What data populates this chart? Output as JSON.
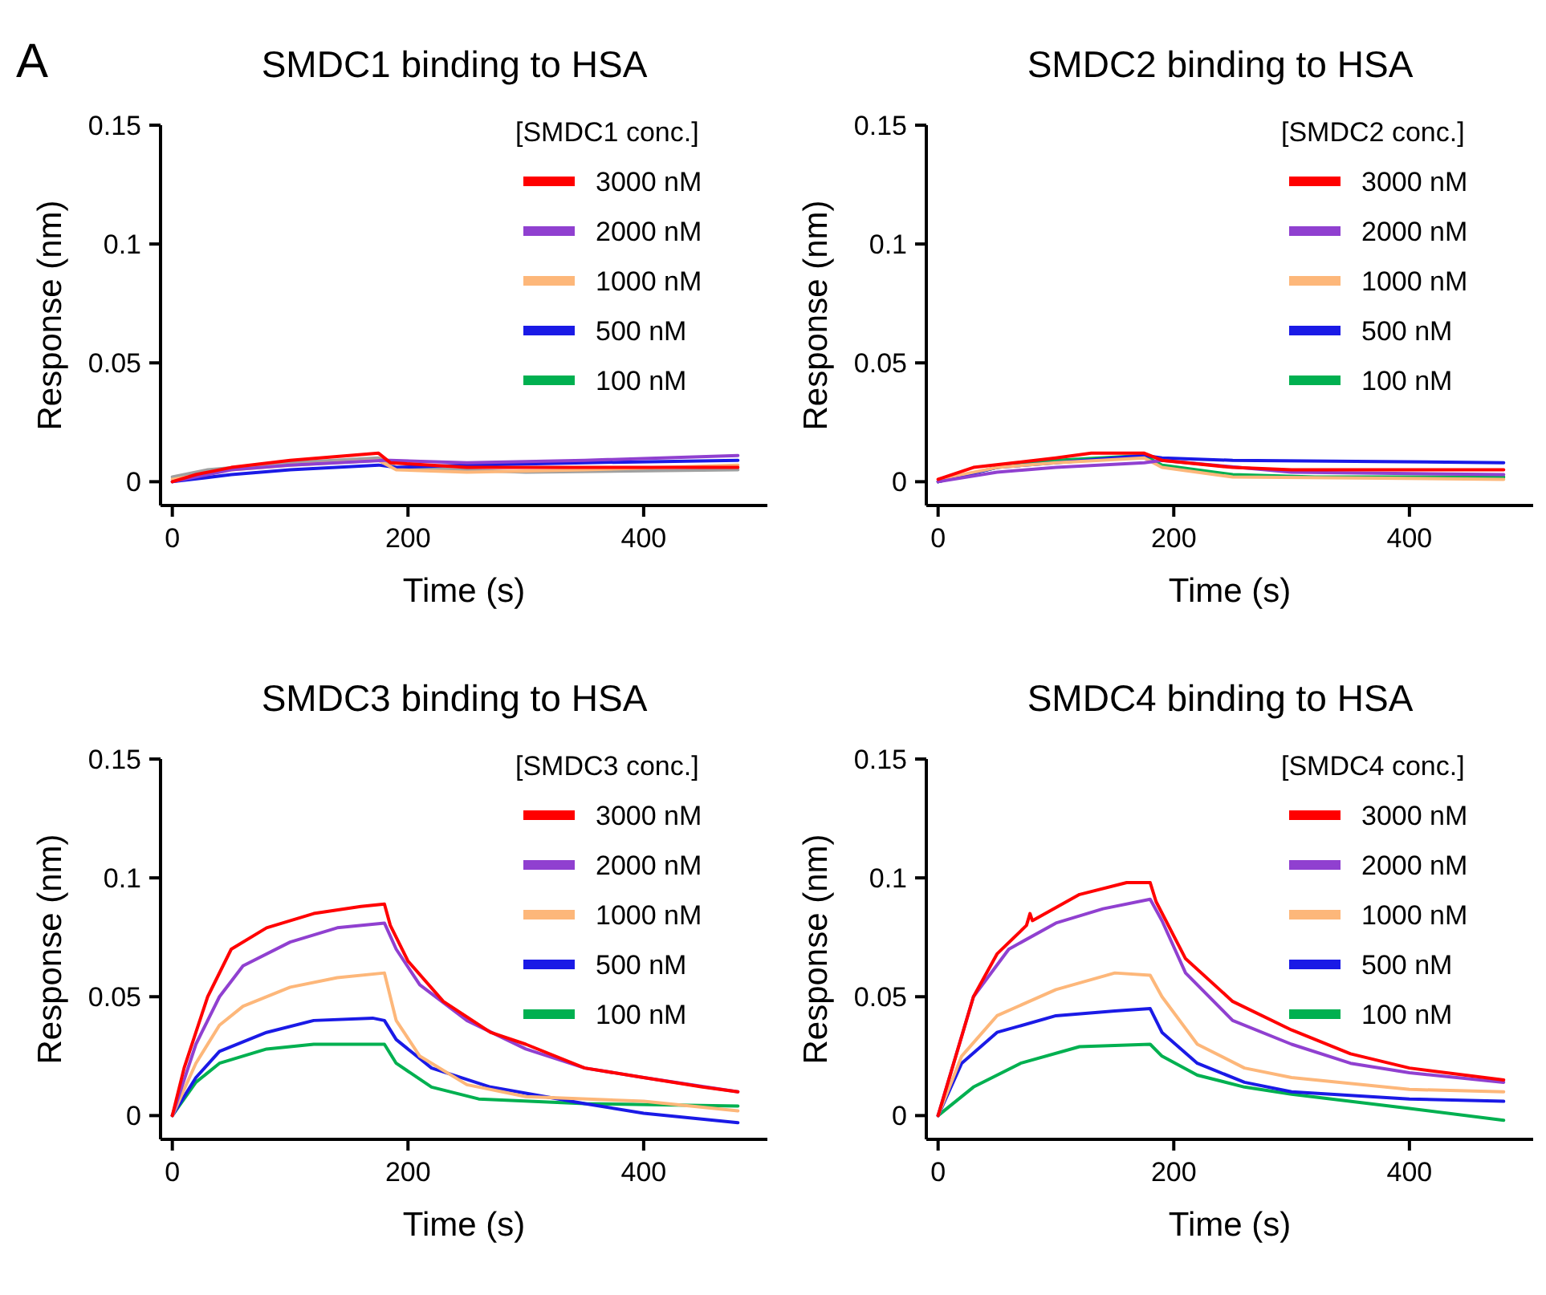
{
  "chart_data": [
    {
      "type": "line",
      "title": "SMDC1 binding to HSA",
      "xlabel": "Time (s)",
      "ylabel": "Response (nm)",
      "legend_title": "[SMDC1 conc.]",
      "legend": "top right",
      "annotations": [
        "A"
      ],
      "xlim": [
        -10,
        505
      ],
      "ylim": [
        -0.01,
        0.15
      ],
      "xticks": [
        0,
        200,
        400
      ],
      "yticks": [
        0,
        0.05,
        0.1,
        0.15
      ],
      "series": [
        {
          "name": "3000 nM",
          "color": "#ff0000",
          "x": [
            0,
            20,
            50,
            100,
            150,
            175,
            185,
            250,
            300,
            400,
            480
          ],
          "values": [
            0,
            0.003,
            0.006,
            0.009,
            0.011,
            0.012,
            0.008,
            0.006,
            0.006,
            0.006,
            0.006
          ]
        },
        {
          "name": "2000 nM",
          "color": "#9040d0",
          "x": [
            0,
            50,
            100,
            180,
            185,
            250,
            350,
            480
          ],
          "values": [
            0,
            0.005,
            0.007,
            0.009,
            0.009,
            0.008,
            0.009,
            0.011
          ]
        },
        {
          "name": "1000 nM",
          "color": "#fdb77a",
          "x": [
            0,
            50,
            100,
            175,
            190,
            250,
            350,
            480
          ],
          "values": [
            0.001,
            0.005,
            0.007,
            0.009,
            0.005,
            0.004,
            0.005,
            0.007
          ]
        },
        {
          "name": "500 nM",
          "color": "#1a1ae6",
          "x": [
            0,
            50,
            100,
            175,
            190,
            250,
            350,
            480
          ],
          "values": [
            0,
            0.003,
            0.005,
            0.007,
            0.006,
            0.007,
            0.008,
            0.009
          ]
        },
        {
          "name": "100 nM",
          "color": "#00b050"
        },
        {
          "color": "#a0a0a0",
          "x": [
            0,
            30,
            100,
            175,
            190,
            300,
            480
          ],
          "values": [
            0.002,
            0.005,
            0.008,
            0.01,
            0.006,
            0.004,
            0.005
          ]
        }
      ]
    },
    {
      "type": "line",
      "title": "SMDC2 binding to HSA",
      "xlabel": "Time (s)",
      "ylabel": "Response (nm)",
      "legend_title": "[SMDC2 conc.]",
      "legend": "top right",
      "xlim": [
        -10,
        505
      ],
      "ylim": [
        -0.01,
        0.15
      ],
      "xticks": [
        0,
        200,
        400
      ],
      "yticks": [
        0,
        0.05,
        0.1,
        0.15
      ],
      "series": [
        {
          "name": "3000 nM",
          "color": "#ff0000",
          "x": [
            0,
            30,
            100,
            130,
            175,
            190,
            250,
            300,
            480
          ],
          "values": [
            0.001,
            0.006,
            0.01,
            0.012,
            0.012,
            0.009,
            0.006,
            0.005,
            0.005
          ]
        },
        {
          "name": "2000 nM",
          "color": "#9040d0",
          "x": [
            0,
            50,
            100,
            175,
            190,
            300,
            480
          ],
          "values": [
            0,
            0.004,
            0.006,
            0.008,
            0.009,
            0.004,
            0.003
          ]
        },
        {
          "name": "1000 nM",
          "color": "#fdb77a",
          "x": [
            0,
            50,
            100,
            175,
            190,
            250,
            480
          ],
          "values": [
            0.001,
            0.006,
            0.008,
            0.01,
            0.006,
            0.002,
            0.001
          ]
        },
        {
          "name": "500 nM",
          "color": "#1a1ae6",
          "x": [
            0,
            50,
            100,
            175,
            190,
            250,
            480
          ],
          "values": [
            0,
            0.006,
            0.008,
            0.011,
            0.01,
            0.009,
            0.008
          ]
        },
        {
          "name": "100 nM",
          "color": "#00b050",
          "x": [
            0,
            50,
            100,
            175,
            190,
            250,
            320,
            480
          ],
          "values": [
            0,
            0.006,
            0.009,
            0.011,
            0.007,
            0.003,
            0.002,
            0.002
          ]
        }
      ]
    },
    {
      "type": "line",
      "title": "SMDC3 binding to HSA",
      "xlabel": "Time (s)",
      "ylabel": "Response (nm)",
      "legend_title": "[SMDC3 conc.]",
      "legend": "top right",
      "xlim": [
        -10,
        505
      ],
      "ylim": [
        -0.01,
        0.15
      ],
      "xticks": [
        0,
        200,
        400
      ],
      "yticks": [
        0,
        0.05,
        0.1,
        0.15
      ],
      "series": [
        {
          "name": "3000 nM",
          "color": "#ff0000",
          "x": [
            0,
            10,
            20,
            30,
            50,
            80,
            120,
            160,
            180,
            185,
            200,
            230,
            270,
            300,
            350,
            400,
            450,
            480
          ],
          "values": [
            0,
            0.02,
            0.035,
            0.05,
            0.07,
            0.079,
            0.085,
            0.088,
            0.089,
            0.08,
            0.065,
            0.048,
            0.035,
            0.03,
            0.02,
            0.016,
            0.012,
            0.01
          ]
        },
        {
          "name": "2000 nM",
          "color": "#9040d0",
          "x": [
            0,
            20,
            40,
            60,
            100,
            140,
            180,
            190,
            210,
            250,
            300,
            350,
            400,
            480
          ],
          "values": [
            0,
            0.03,
            0.05,
            0.063,
            0.073,
            0.079,
            0.081,
            0.07,
            0.055,
            0.04,
            0.028,
            0.02,
            0.016,
            0.01
          ]
        },
        {
          "name": "1000 nM",
          "color": "#fdb77a",
          "x": [
            0,
            20,
            40,
            60,
            100,
            140,
            180,
            190,
            210,
            250,
            300,
            400,
            480
          ],
          "values": [
            0,
            0.022,
            0.038,
            0.046,
            0.054,
            0.058,
            0.06,
            0.04,
            0.025,
            0.013,
            0.008,
            0.006,
            0.002
          ]
        },
        {
          "name": "500 nM",
          "color": "#1a1ae6",
          "x": [
            0,
            20,
            40,
            80,
            120,
            170,
            180,
            190,
            220,
            270,
            350,
            400,
            480
          ],
          "values": [
            0,
            0.016,
            0.027,
            0.035,
            0.04,
            0.041,
            0.04,
            0.032,
            0.02,
            0.012,
            0.005,
            0.001,
            -0.003
          ]
        },
        {
          "name": "100 nM",
          "color": "#00b050",
          "x": [
            0,
            20,
            40,
            80,
            120,
            180,
            190,
            220,
            260,
            350,
            480
          ],
          "values": [
            0,
            0.014,
            0.022,
            0.028,
            0.03,
            0.03,
            0.022,
            0.012,
            0.007,
            0.005,
            0.004
          ]
        }
      ]
    },
    {
      "type": "line",
      "title": "SMDC4 binding to HSA",
      "xlabel": "Time (s)",
      "ylabel": "Response (nm)",
      "legend_title": "[SMDC4 conc.]",
      "legend": "top right",
      "xlim": [
        -10,
        505
      ],
      "ylim": [
        -0.01,
        0.15
      ],
      "xticks": [
        0,
        200,
        400
      ],
      "yticks": [
        0,
        0.05,
        0.1,
        0.15
      ],
      "series": [
        {
          "name": "3000 nM",
          "color": "#ff0000",
          "x": [
            0,
            15,
            30,
            50,
            75,
            78,
            80,
            120,
            160,
            180,
            185,
            210,
            250,
            300,
            350,
            400,
            480
          ],
          "values": [
            0,
            0.025,
            0.05,
            0.068,
            0.08,
            0.085,
            0.082,
            0.093,
            0.098,
            0.098,
            0.09,
            0.066,
            0.048,
            0.036,
            0.026,
            0.02,
            0.015
          ]
        },
        {
          "name": "2000 nM",
          "color": "#9040d0",
          "x": [
            0,
            30,
            60,
            100,
            140,
            180,
            190,
            210,
            250,
            300,
            350,
            400,
            480
          ],
          "values": [
            0,
            0.05,
            0.07,
            0.081,
            0.087,
            0.091,
            0.082,
            0.06,
            0.04,
            0.03,
            0.022,
            0.018,
            0.014
          ]
        },
        {
          "name": "1000 nM",
          "color": "#fdb77a",
          "x": [
            0,
            20,
            50,
            100,
            150,
            180,
            190,
            220,
            260,
            300,
            400,
            480
          ],
          "values": [
            0,
            0.025,
            0.042,
            0.053,
            0.06,
            0.059,
            0.05,
            0.03,
            0.02,
            0.016,
            0.011,
            0.01
          ]
        },
        {
          "name": "500 nM",
          "color": "#1a1ae6",
          "x": [
            0,
            20,
            50,
            100,
            150,
            180,
            190,
            220,
            260,
            300,
            400,
            480
          ],
          "values": [
            0,
            0.022,
            0.035,
            0.042,
            0.044,
            0.045,
            0.035,
            0.022,
            0.014,
            0.01,
            0.007,
            0.006
          ]
        },
        {
          "name": "100 nM",
          "color": "#00b050",
          "x": [
            0,
            30,
            70,
            120,
            180,
            190,
            220,
            260,
            300,
            400,
            480
          ],
          "values": [
            0,
            0.012,
            0.022,
            0.029,
            0.03,
            0.025,
            0.017,
            0.012,
            0.009,
            0.003,
            -0.002
          ]
        }
      ]
    }
  ]
}
